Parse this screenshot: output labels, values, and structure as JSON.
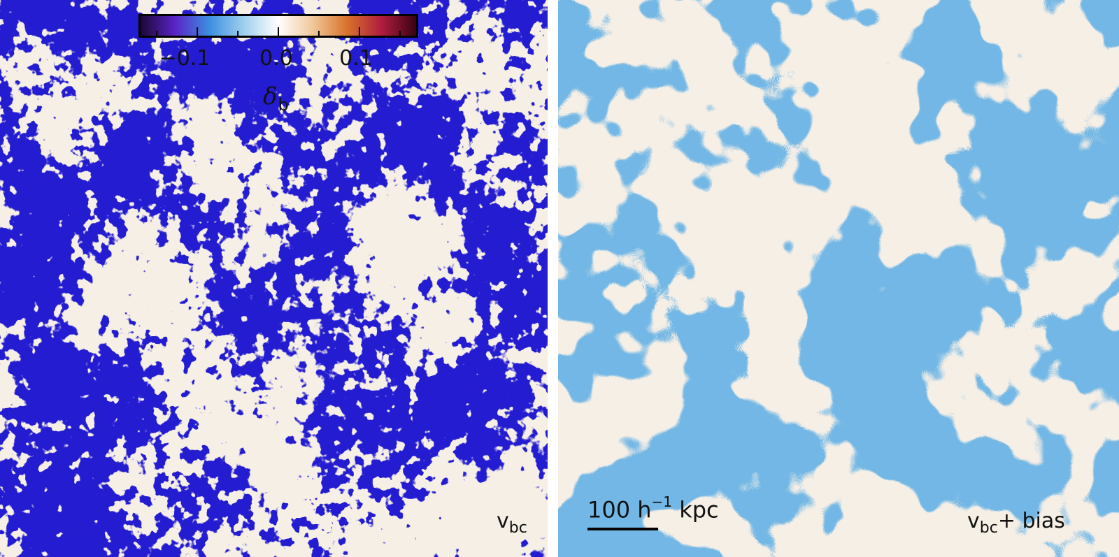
{
  "colorbar": {
    "ticks": [
      "−0.1",
      "0.0",
      "0.1"
    ],
    "tick_values": [
      -0.1,
      0.0,
      0.1
    ],
    "range": [
      -0.17,
      0.17
    ],
    "label": "δ",
    "label_sub": "b",
    "colors": [
      "#1c0735",
      "#5a24c6",
      "#3c8fe0",
      "#9fd0ee",
      "#ffffff",
      "#f0c89a",
      "#d8722b",
      "#b01c3e",
      "#3a0312"
    ]
  },
  "panels": {
    "left": {
      "label": "v",
      "label_sub": "bc",
      "label_suffix": ""
    },
    "right": {
      "label": "v",
      "label_sub": "bc",
      "label_suffix": "+ bias"
    }
  },
  "scalebar": {
    "text": "100 h",
    "exponent": "−1",
    "unit": " kpc"
  }
}
